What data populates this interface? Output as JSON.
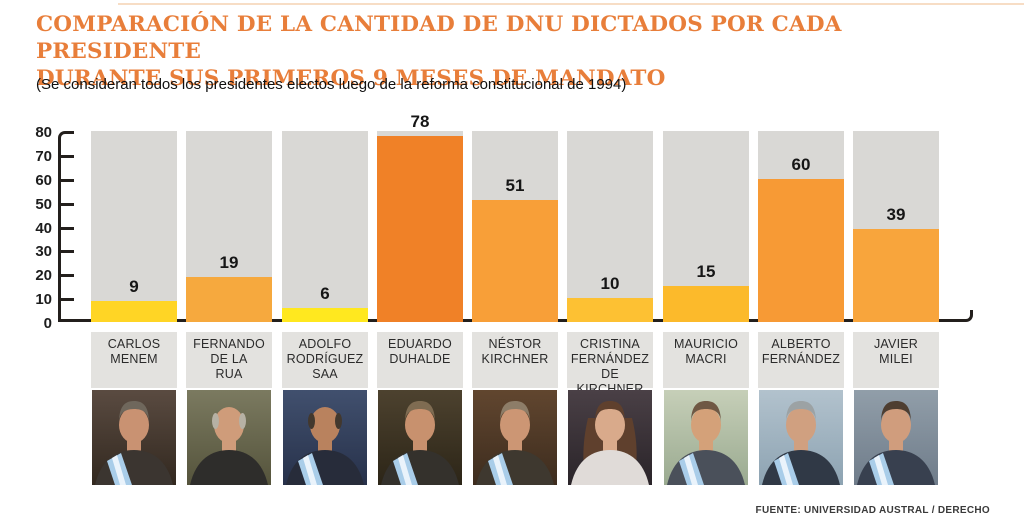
{
  "page": {
    "background": "#ffffff"
  },
  "header": {
    "title_line1": "COMPARACIÓN DE LA CANTIDAD DE DNU DICTADOS POR CADA PRESIDENTE",
    "title_line2": "DURANTE SUS PRIMEROS 9 MESES DE MANDATO",
    "title_color": "#e87e3a",
    "subtitle": "(Se consideran todos los presidentes electos luego de la reforma constitucional de 1994)"
  },
  "chart_data": {
    "type": "bar",
    "title": "Comparación de la cantidad de DNU dictados por cada presidente durante sus primeros 9 meses de mandato",
    "categories": [
      "CARLOS MENEM",
      "FERNANDO DE LA RUA",
      "ADOLFO RODRÍGUEZ SAA",
      "EDUARDO DUHALDE",
      "NÉSTOR KIRCHNER",
      "CRISTINA FERNÁNDEZ DE KIRCHNER",
      "MAURICIO MACRI",
      "ALBERTO FERNÁNDEZ",
      "JAVIER MILEI"
    ],
    "values": [
      9,
      19,
      6,
      78,
      51,
      10,
      15,
      60,
      39
    ],
    "ylim": [
      0,
      80
    ],
    "yticks": [
      0,
      10,
      20,
      30,
      40,
      50,
      60,
      70,
      80
    ],
    "grid": false,
    "legend": false,
    "bar_colors": [
      "#ffd525",
      "#f6a93e",
      "#ffe81f",
      "#f08127",
      "#f89f38",
      "#fdc133",
      "#fcba2b",
      "#f79a35",
      "#f8a53c"
    ],
    "column_bg": "#d9d8d5",
    "axis_color": "#231f1c"
  },
  "presidents": [
    {
      "label_lines": [
        "CARLOS",
        "MENEM"
      ],
      "photo": {
        "bg1": "#5a4b41",
        "bg2": "#32281f",
        "skin": "#c99272",
        "hair": "#6f675c",
        "suit": "#3b3530",
        "sash": true
      }
    },
    {
      "label_lines": [
        "FERNANDO",
        "DE LA",
        "RUA"
      ],
      "photo": {
        "bg1": "#7b7a60",
        "bg2": "#55543c",
        "skin": "#cf9c7a",
        "hair": "#b6b1a4",
        "suit": "#2e2d2b",
        "bald": true
      }
    },
    {
      "label_lines": [
        "ADOLFO",
        "RODRÍGUEZ",
        "SAA"
      ],
      "photo": {
        "bg1": "#41506e",
        "bg2": "#27314a",
        "skin": "#b9825e",
        "hair": "#42382e",
        "suit": "#272c3a",
        "sash": true,
        "bald": true
      }
    },
    {
      "label_lines": [
        "EDUARDO",
        "DUHALDE"
      ],
      "photo": {
        "bg1": "#4d422f",
        "bg2": "#2c2517",
        "skin": "#c8916e",
        "hair": "#7f6c52",
        "suit": "#34312c",
        "sash": true
      }
    },
    {
      "label_lines": [
        "NÉSTOR",
        "KIRCHNER"
      ],
      "photo": {
        "bg1": "#61462f",
        "bg2": "#3d2c1e",
        "skin": "#cc9674",
        "hair": "#8d7d68",
        "suit": "#3e382f",
        "sash": true
      }
    },
    {
      "label_lines": [
        "CRISTINA",
        "FERNÁNDEZ",
        "DE KIRCHNER"
      ],
      "photo": {
        "bg1": "#4a4046",
        "bg2": "#2a2429",
        "skin": "#d9aa8b",
        "hair": "#5f402d",
        "suit": "#e0dbd8",
        "long_hair": true
      }
    },
    {
      "label_lines": [
        "MAURICIO",
        "MACRI"
      ],
      "photo": {
        "bg1": "#c6cfb8",
        "bg2": "#9aaa90",
        "skin": "#d4a179",
        "hair": "#6f5844",
        "suit": "#4a505a",
        "sash": true
      }
    },
    {
      "label_lines": [
        "ALBERTO",
        "FERNÁNDEZ"
      ],
      "photo": {
        "bg1": "#b2c2cd",
        "bg2": "#8da3b2",
        "skin": "#d0a080",
        "hair": "#9ca2a4",
        "suit": "#303946",
        "sash": true
      }
    },
    {
      "label_lines": [
        "JAVIER",
        "MILEI"
      ],
      "photo": {
        "bg1": "#919ea9",
        "bg2": "#6f7c8a",
        "skin": "#d09d7d",
        "hair": "#4e3e31",
        "suit": "#38404f",
        "sash": true
      }
    }
  ],
  "footer": {
    "source": "FUENTE: UNIVERSIDAD AUSTRAL / DERECHO"
  }
}
